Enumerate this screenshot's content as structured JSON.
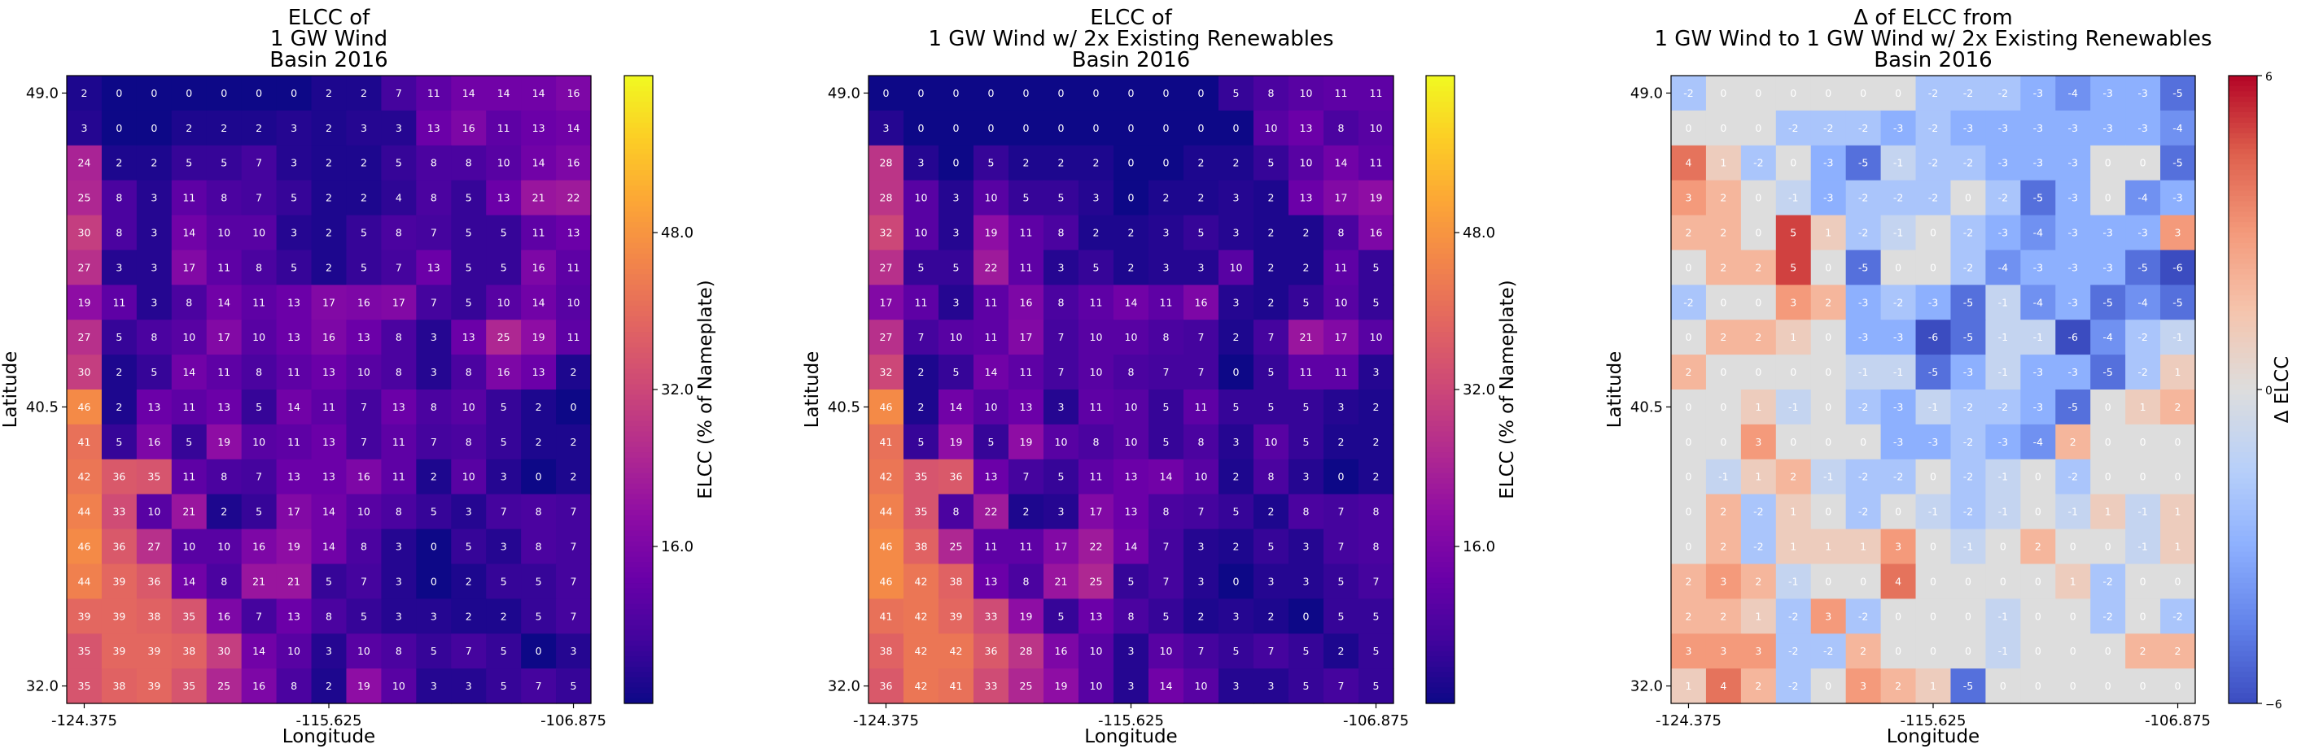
{
  "chart_data": [
    {
      "type": "heatmap",
      "title_lines": [
        "ELCC of",
        "1 GW Wind",
        "Basin 2016"
      ],
      "xlabel": "Longitude",
      "ylabel": "Latitude",
      "x_ticks": [
        "-124.375",
        "-115.625",
        "-106.875"
      ],
      "y_ticks": [
        "49.0",
        "40.5",
        "32.0"
      ],
      "colormap": "plasma",
      "vmin": 0,
      "vmax": 64,
      "colorbar": {
        "label": "ELCC (% of Nameplate)",
        "ticks": [
          "48.0",
          "32.0",
          "16.0"
        ],
        "tick_values": [
          48,
          32,
          16
        ]
      },
      "rows": [
        [
          2,
          0,
          0,
          0,
          0,
          0,
          0,
          2,
          2,
          7,
          11,
          14,
          14,
          14,
          16
        ],
        [
          3,
          0,
          0,
          2,
          2,
          2,
          3,
          2,
          3,
          3,
          13,
          16,
          11,
          13,
          14
        ],
        [
          24,
          2,
          2,
          5,
          5,
          7,
          3,
          2,
          2,
          5,
          8,
          8,
          10,
          14,
          16
        ],
        [
          25,
          8,
          3,
          11,
          8,
          7,
          5,
          2,
          2,
          4,
          8,
          5,
          13,
          21,
          22
        ],
        [
          30,
          8,
          3,
          14,
          10,
          10,
          3,
          2,
          5,
          8,
          7,
          5,
          5,
          11,
          13
        ],
        [
          27,
          3,
          3,
          17,
          11,
          8,
          5,
          2,
          5,
          7,
          13,
          5,
          5,
          16,
          11
        ],
        [
          19,
          11,
          3,
          8,
          14,
          11,
          13,
          17,
          16,
          17,
          7,
          5,
          10,
          14,
          10
        ],
        [
          27,
          5,
          8,
          10,
          17,
          10,
          13,
          16,
          13,
          8,
          3,
          13,
          25,
          19,
          11
        ],
        [
          30,
          2,
          5,
          14,
          11,
          8,
          11,
          13,
          10,
          8,
          3,
          8,
          16,
          13,
          2
        ],
        [
          46,
          2,
          13,
          11,
          13,
          5,
          14,
          11,
          7,
          13,
          8,
          10,
          5,
          2,
          0
        ],
        [
          41,
          5,
          16,
          5,
          19,
          10,
          11,
          13,
          7,
          11,
          7,
          8,
          5,
          2,
          2
        ],
        [
          42,
          36,
          35,
          11,
          8,
          7,
          13,
          13,
          16,
          11,
          2,
          10,
          3,
          0,
          2
        ],
        [
          44,
          33,
          10,
          21,
          2,
          5,
          17,
          14,
          10,
          8,
          5,
          3,
          7,
          8,
          7
        ],
        [
          46,
          36,
          27,
          10,
          10,
          16,
          19,
          14,
          8,
          3,
          0,
          5,
          3,
          8,
          7
        ],
        [
          44,
          39,
          36,
          14,
          8,
          21,
          21,
          5,
          7,
          3,
          0,
          2,
          5,
          5,
          7
        ],
        [
          39,
          39,
          38,
          35,
          16,
          7,
          13,
          8,
          5,
          3,
          3,
          2,
          2,
          5,
          7
        ],
        [
          35,
          39,
          39,
          38,
          30,
          14,
          10,
          3,
          10,
          8,
          5,
          7,
          5,
          0,
          3
        ],
        [
          35,
          38,
          39,
          35,
          25,
          16,
          8,
          2,
          19,
          10,
          3,
          3,
          5,
          7,
          5
        ]
      ]
    },
    {
      "type": "heatmap",
      "title_lines": [
        "ELCC of",
        "1 GW Wind w/ 2x Existing Renewables",
        "Basin 2016"
      ],
      "xlabel": "Longitude",
      "ylabel": "Latitude",
      "x_ticks": [
        "-124.375",
        "-115.625",
        "-106.875"
      ],
      "y_ticks": [
        "49.0",
        "40.5",
        "32.0"
      ],
      "colormap": "plasma",
      "vmin": 0,
      "vmax": 64,
      "colorbar": {
        "label": "ELCC (% of Nameplate)",
        "ticks": [
          "48.0",
          "32.0",
          "16.0"
        ],
        "tick_values": [
          48,
          32,
          16
        ]
      },
      "rows": [
        [
          0,
          0,
          0,
          0,
          0,
          0,
          0,
          0,
          0,
          0,
          5,
          8,
          10,
          11,
          11
        ],
        [
          3,
          0,
          0,
          0,
          0,
          0,
          0,
          0,
          0,
          0,
          0,
          10,
          13,
          8,
          10
        ],
        [
          28,
          3,
          0,
          5,
          2,
          2,
          2,
          0,
          0,
          2,
          2,
          5,
          10,
          14,
          11
        ],
        [
          28,
          10,
          3,
          10,
          5,
          5,
          3,
          0,
          2,
          2,
          3,
          2,
          13,
          17,
          19
        ],
        [
          32,
          10,
          3,
          19,
          11,
          8,
          2,
          2,
          3,
          5,
          3,
          2,
          2,
          8,
          16
        ],
        [
          27,
          5,
          5,
          22,
          11,
          3,
          5,
          2,
          3,
          3,
          10,
          2,
          2,
          11,
          5
        ],
        [
          17,
          11,
          3,
          11,
          16,
          8,
          11,
          14,
          11,
          16,
          3,
          2,
          5,
          10,
          5
        ],
        [
          27,
          7,
          10,
          11,
          17,
          7,
          10,
          10,
          8,
          7,
          2,
          7,
          21,
          17,
          10
        ],
        [
          32,
          2,
          5,
          14,
          11,
          7,
          10,
          8,
          7,
          7,
          0,
          5,
          11,
          11,
          3
        ],
        [
          46,
          2,
          14,
          10,
          13,
          3,
          11,
          10,
          5,
          11,
          5,
          5,
          5,
          3,
          2
        ],
        [
          41,
          5,
          19,
          5,
          19,
          10,
          8,
          10,
          5,
          8,
          3,
          10,
          5,
          2,
          2
        ],
        [
          42,
          35,
          36,
          13,
          7,
          5,
          11,
          13,
          14,
          10,
          2,
          8,
          3,
          0,
          2
        ],
        [
          44,
          35,
          8,
          22,
          2,
          3,
          17,
          13,
          8,
          7,
          5,
          2,
          8,
          7,
          8
        ],
        [
          46,
          38,
          25,
          11,
          11,
          17,
          22,
          14,
          7,
          3,
          2,
          5,
          3,
          7,
          8
        ],
        [
          46,
          42,
          38,
          13,
          8,
          21,
          25,
          5,
          7,
          3,
          0,
          3,
          3,
          5,
          7
        ],
        [
          41,
          42,
          39,
          33,
          19,
          5,
          13,
          8,
          5,
          2,
          3,
          2,
          0,
          5,
          5
        ],
        [
          38,
          42,
          42,
          36,
          28,
          16,
          10,
          3,
          10,
          7,
          5,
          7,
          5,
          2,
          5
        ],
        [
          36,
          42,
          41,
          33,
          25,
          19,
          10,
          3,
          14,
          10,
          3,
          3,
          5,
          7,
          5
        ]
      ]
    },
    {
      "type": "heatmap",
      "title_lines": [
        "Δ of ELCC from",
        "1 GW Wind to 1 GW Wind w/ 2x Existing Renewables",
        "Basin 2016"
      ],
      "xlabel": "Longitude",
      "ylabel": "Latitude",
      "x_ticks": [
        "-124.375",
        "-115.625",
        "-106.875"
      ],
      "y_ticks": [
        "49.0",
        "40.5",
        "32.0"
      ],
      "colormap": "coolwarm",
      "vmin": -6,
      "vmax": 6,
      "colorbar": {
        "label": "Δ ELCC",
        "ticks": [
          "6",
          "0",
          "−6"
        ],
        "tick_values": [
          6,
          0,
          -6
        ]
      },
      "rows": [
        [
          -2,
          0,
          0,
          0,
          0,
          0,
          0,
          -2,
          -2,
          -2,
          -3,
          -4,
          -3,
          -3,
          -5
        ],
        [
          0,
          0,
          0,
          -2,
          -2,
          -2,
          -3,
          -2,
          -3,
          -3,
          -3,
          -3,
          -3,
          -3,
          -4
        ],
        [
          4,
          1,
          -2,
          0,
          -3,
          -5,
          -1,
          -2,
          -2,
          -3,
          -3,
          -3,
          0,
          0,
          -5
        ],
        [
          3,
          2,
          0,
          -1,
          -3,
          -2,
          -2,
          -2,
          0,
          -2,
          -5,
          -3,
          0,
          -4,
          -3
        ],
        [
          2,
          2,
          0,
          5,
          1,
          -2,
          -1,
          0,
          -2,
          -3,
          -4,
          -3,
          -3,
          -3,
          3
        ],
        [
          0,
          2,
          2,
          5,
          0,
          -5,
          0,
          0,
          -2,
          -4,
          -3,
          -3,
          -3,
          -5,
          -6
        ],
        [
          -2,
          0,
          0,
          3,
          2,
          -3,
          -2,
          -3,
          -5,
          -1,
          -4,
          -3,
          -5,
          -4,
          -5
        ],
        [
          0,
          2,
          2,
          1,
          0,
          -3,
          -3,
          -6,
          -5,
          -1,
          -1,
          -6,
          -4,
          -2,
          -1
        ],
        [
          2,
          0,
          0,
          0,
          0,
          -1,
          -1,
          -5,
          -3,
          -1,
          -3,
          -3,
          -5,
          -2,
          1
        ],
        [
          0,
          0,
          1,
          -1,
          0,
          -2,
          -3,
          -1,
          -2,
          -2,
          -3,
          -5,
          0,
          1,
          2
        ],
        [
          0,
          0,
          3,
          0,
          0,
          0,
          -3,
          -3,
          -2,
          -3,
          -4,
          2,
          0,
          0,
          0
        ],
        [
          0,
          -1,
          1,
          2,
          -1,
          -2,
          -2,
          0,
          -2,
          -1,
          0,
          -2,
          0,
          0,
          0
        ],
        [
          0,
          2,
          -2,
          1,
          0,
          -2,
          0,
          -1,
          -2,
          -1,
          0,
          -1,
          1,
          -1,
          1
        ],
        [
          0,
          2,
          -2,
          1,
          1,
          1,
          3,
          0,
          -1,
          0,
          2,
          0,
          0,
          -1,
          1
        ],
        [
          2,
          3,
          2,
          -1,
          0,
          0,
          4,
          0,
          0,
          0,
          0,
          1,
          -2,
          0,
          0
        ],
        [
          2,
          2,
          1,
          -2,
          3,
          -2,
          0,
          0,
          0,
          -1,
          0,
          0,
          -2,
          0,
          -2
        ],
        [
          3,
          3,
          3,
          -2,
          -2,
          2,
          0,
          0,
          0,
          -1,
          0,
          0,
          0,
          2,
          2
        ],
        [
          1,
          4,
          2,
          -2,
          0,
          3,
          2,
          1,
          -5,
          0,
          0,
          0,
          0,
          0,
          0
        ]
      ]
    }
  ]
}
